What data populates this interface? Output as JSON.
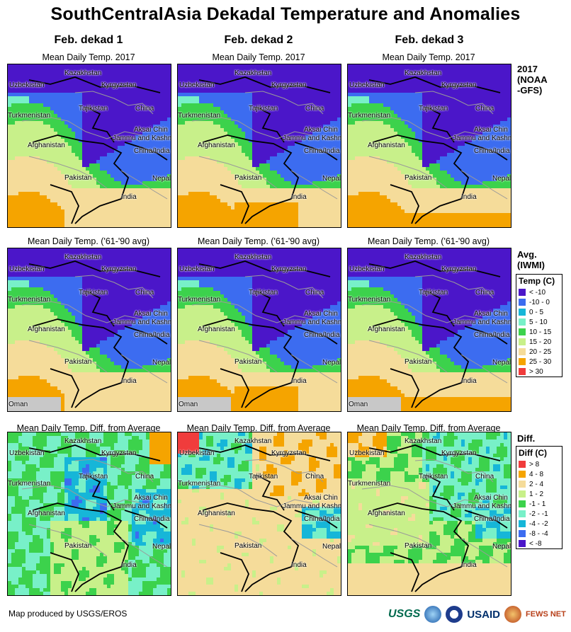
{
  "title": "SouthCentralAsia Dekadal Temperature and Anomalies",
  "columns": [
    "Feb. dekad 1",
    "Feb. dekad 2",
    "Feb. dekad 3"
  ],
  "row_titles": [
    "Mean Daily Temp. 2017",
    "Mean Daily Temp. ('61-'90 avg)",
    "Mean Daily Temp. Diff. from Average"
  ],
  "row_labels": {
    "r1": [
      "2017",
      "(NOAA",
      "-GFS)"
    ],
    "r2": [
      "Avg.",
      "(IWMI)"
    ],
    "r3": [
      "Diff."
    ]
  },
  "place_labels": {
    "kazakhstan": "Kazakhstan",
    "uzbekistan": "Uzbekistan",
    "kyrgyzstan": "Kyrgyzstan",
    "turkmenistan": "Turkmenistan",
    "tajikistan": "Tajikistan",
    "china": "China",
    "aksai_chin": "Aksai Chin",
    "jammu_kashmir": "Jammu and Kashmir",
    "afghanistan": "Afghanistan",
    "china_india": "China/India",
    "pakistan": "Pakistan",
    "nepal": "Nepal",
    "india": "India",
    "oman": "Oman"
  },
  "legend_temp": {
    "title": "Temp (C)",
    "items": [
      {
        "label": "< -10",
        "color": "#4b16c9"
      },
      {
        "label": "-10 - 0",
        "color": "#3c6cf0"
      },
      {
        "label": "0 - 5",
        "color": "#16b6d8"
      },
      {
        "label": "5 - 10",
        "color": "#78f0c8"
      },
      {
        "label": "10 - 15",
        "color": "#3cd24c"
      },
      {
        "label": "15 - 20",
        "color": "#c8f08a"
      },
      {
        "label": "20 - 25",
        "color": "#f5dc9a"
      },
      {
        "label": "25 - 30",
        "color": "#f5a400"
      },
      {
        "label": "> 30",
        "color": "#f03c3c"
      }
    ]
  },
  "legend_diff": {
    "title": "Diff (C)",
    "items": [
      {
        "label": "> 8",
        "color": "#f03c3c"
      },
      {
        "label": "4 - 8",
        "color": "#f5a400"
      },
      {
        "label": "2 - 4",
        "color": "#f5dc9a"
      },
      {
        "label": "1 - 2",
        "color": "#c8f08a"
      },
      {
        "label": "-1 - 1",
        "color": "#3cd24c"
      },
      {
        "label": "-2 - -1",
        "color": "#78f0c8"
      },
      {
        "label": "-4 - -2",
        "color": "#16b6d8"
      },
      {
        "label": "-8 - -4",
        "color": "#3c6cf0"
      },
      {
        "label": "< -8",
        "color": "#4b16c9"
      }
    ]
  },
  "footer": "Map produced by USGS/EROS",
  "logos": {
    "usgs": "USGS",
    "usaid": "USAID",
    "fews": "FEWS NET"
  }
}
